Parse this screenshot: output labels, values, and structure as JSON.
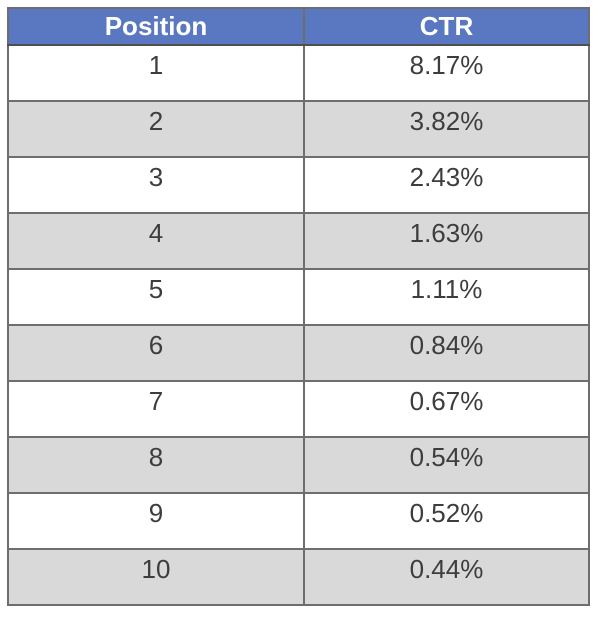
{
  "chart_data": {
    "type": "table",
    "title": "",
    "columns": [
      "Position",
      "CTR"
    ],
    "rows": [
      [
        "1",
        "8.17%"
      ],
      [
        "2",
        "3.82%"
      ],
      [
        "3",
        "2.43%"
      ],
      [
        "4",
        "1.63%"
      ],
      [
        "5",
        "1.11%"
      ],
      [
        "6",
        "0.84%"
      ],
      [
        "7",
        "0.67%"
      ],
      [
        "8",
        "0.54%"
      ],
      [
        "9",
        "0.52%"
      ],
      [
        "10",
        "0.44%"
      ]
    ],
    "numeric": {
      "positions": [
        1,
        2,
        3,
        4,
        5,
        6,
        7,
        8,
        9,
        10
      ],
      "ctr_percent": [
        8.17,
        3.82,
        2.43,
        1.63,
        1.11,
        0.84,
        0.67,
        0.54,
        0.52,
        0.44
      ]
    },
    "layout_hints": {
      "header_style": "blue background, white bold text",
      "row_striping": "odd rows white, even rows light gray",
      "cell_alignment": "center, top-aligned"
    }
  },
  "colors": {
    "header_bg": "#5a77c1",
    "header_text": "#ffffff",
    "row_bg": "#ffffff",
    "row_alt_bg": "#d9d9d9",
    "border_outer": "#4f4f4f",
    "border_inner": "#6e6e6e",
    "cell_text": "#3d3d3d"
  }
}
